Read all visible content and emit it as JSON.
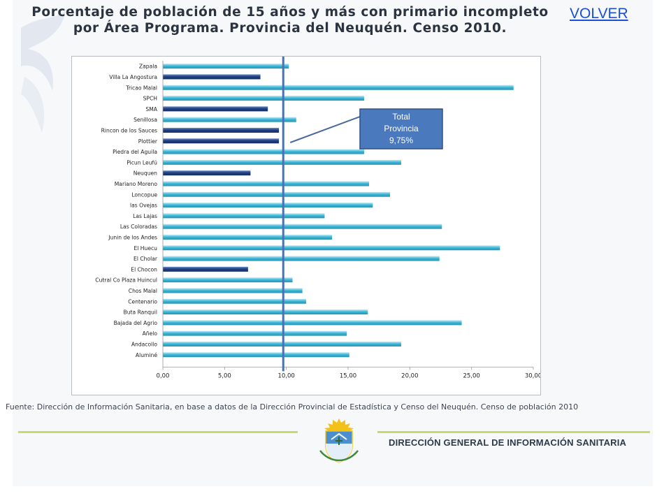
{
  "header": {
    "title": "Porcentaje de población de 15 años y más con primario incompleto por Área Programa. Provincia del Neuquén. Censo 2010.",
    "back_link": "VOLVER"
  },
  "source_note": "Fuente: Dirección de Información Sanitaria, en base a datos de la Dirección Provincial de Estadística y Censo del Neuquén. Censo de población 2010",
  "footer": {
    "org_name": "DIRECCIÓN GENERAL DE INFORMACIÓN SANITARIA"
  },
  "colors": {
    "bar_light": "#3fb8d8",
    "bar_dark": "#1f3f82",
    "reference_line": "#4a72b2",
    "annotation_box": "#4a7abd",
    "divider": "#c5da6a"
  },
  "chart_data": {
    "type": "bar",
    "orientation": "horizontal",
    "title": "Porcentaje de población de 15 años y más con primario incompleto por Área Programa. Provincia del Neuquén. Censo 2010.",
    "xlabel": "",
    "ylabel": "",
    "xlim": [
      0,
      30
    ],
    "x_ticks": [
      "0,00",
      "5,00",
      "10,00",
      "15,00",
      "20,00",
      "25,00",
      "30,00"
    ],
    "categories": [
      "Zapala",
      "Villa La Angostura",
      "Tricao Malal",
      "SPCH",
      "SMA",
      "Senillosa",
      "Rincon de los Sauces",
      "Plottier",
      "Piedra del Aguila",
      "Picun Leufú",
      "Neuquen",
      "Mariano Moreno",
      "Loncopue",
      "las Ovejas",
      "Las Lajas",
      "Las Coloradas",
      "Junin de los Andes",
      "El Huecu",
      "El Cholar",
      "El Chocon",
      "Cutral Co Plaza Huincul",
      "Chos Malal",
      "Centenario",
      "Buta Ranquil",
      "Bajada del Agrio",
      "Añelo",
      "Andacollo",
      "Aluminé"
    ],
    "values": [
      10.2,
      7.9,
      28.4,
      16.3,
      8.5,
      10.8,
      9.4,
      9.4,
      16.3,
      19.3,
      7.1,
      16.7,
      18.4,
      17.0,
      13.1,
      22.6,
      13.7,
      27.3,
      22.4,
      6.9,
      10.5,
      11.3,
      11.6,
      16.6,
      24.2,
      14.9,
      19.3,
      15.1
    ],
    "below_total": [
      false,
      true,
      false,
      false,
      true,
      false,
      true,
      true,
      false,
      false,
      true,
      false,
      false,
      false,
      false,
      false,
      false,
      false,
      false,
      true,
      false,
      false,
      false,
      false,
      false,
      false,
      false,
      false
    ],
    "reference": {
      "label": "Total Provincia",
      "value": 9.75,
      "label_lines": [
        "Total",
        "Provincia",
        "9,75%"
      ]
    },
    "legend": "none",
    "grid": false
  }
}
